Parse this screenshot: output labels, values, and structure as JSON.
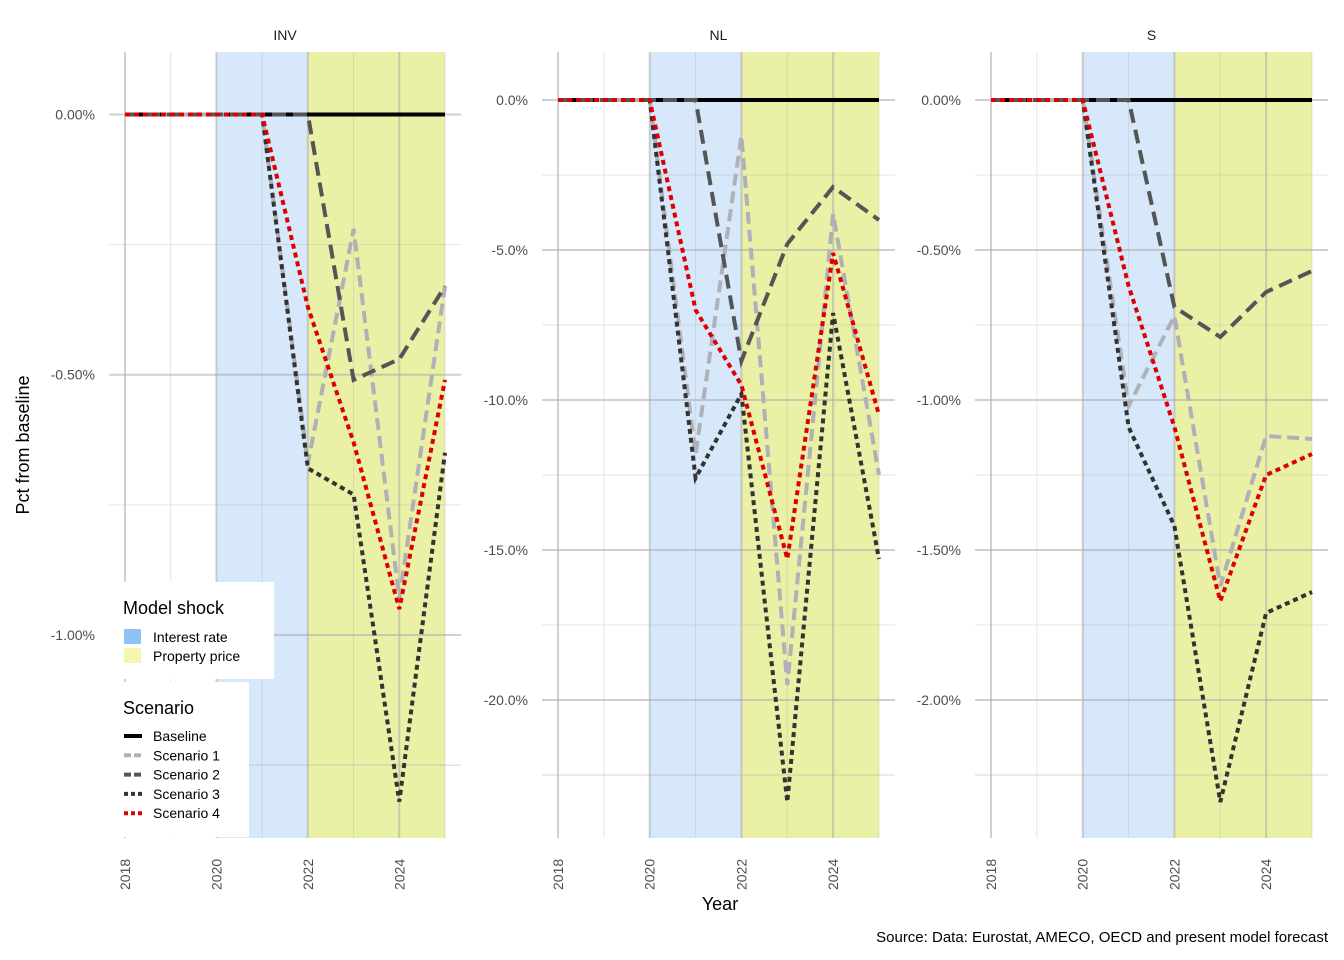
{
  "chart_data": {
    "type": "line",
    "facet_by": "panel",
    "xlabel": "Year",
    "ylabel": "Pct from baseline",
    "caption": "Source: Data: Eurostat, AMECO, OECD and present model forecast",
    "x_range": [
      2018,
      2025
    ],
    "x_ticks": [
      "2018",
      "2020",
      "2022",
      "2024"
    ],
    "x": [
      2018,
      2019,
      2020,
      2021,
      2022,
      2023,
      2024,
      2025
    ],
    "shock_bands": [
      {
        "name": "Interest rate",
        "from": 2020,
        "to": 2022,
        "color": "#d6e8f9"
      },
      {
        "name": "Property price",
        "from": 2022,
        "to": 2025,
        "color": "#eaf0a6"
      }
    ],
    "legend": {
      "shock_title": "Model shock",
      "shock_items": [
        {
          "label": "Interest rate",
          "color": "#8ec4f1"
        },
        {
          "label": "Property price",
          "color": "#f5f5b0"
        }
      ],
      "scenario_title": "Scenario",
      "scenario_items": [
        {
          "label": "Baseline",
          "color": "#000000",
          "dash": "none"
        },
        {
          "label": "Scenario 1",
          "color": "#b0b0b8",
          "dash": "12,6"
        },
        {
          "label": "Scenario 2",
          "color": "#555555",
          "dash": "14,7"
        },
        {
          "label": "Scenario 3",
          "color": "#333333",
          "dash": "5,4"
        },
        {
          "label": "Scenario 4",
          "color": "#dd0000",
          "dash": "5,4"
        }
      ]
    },
    "panels": [
      {
        "title": "INV",
        "ylim": [
          -1.39,
          0.12
        ],
        "y_ticks": [
          0,
          -0.5,
          -1.0
        ],
        "y_tick_labels": [
          "0.00%",
          "-0.50%",
          "-1.00%"
        ],
        "series": [
          {
            "name": "Baseline",
            "values": [
              0,
              0,
              0,
              0,
              0,
              0,
              0,
              0
            ]
          },
          {
            "name": "Scenario 1",
            "values": [
              0,
              0,
              0,
              0,
              -0.67,
              -0.22,
              -0.93,
              -0.33
            ]
          },
          {
            "name": "Scenario 2",
            "values": [
              0,
              0,
              0,
              0,
              0,
              -0.51,
              -0.47,
              -0.33
            ]
          },
          {
            "name": "Scenario 3",
            "values": [
              0,
              0,
              0,
              0,
              -0.68,
              -0.73,
              -1.32,
              -0.65
            ]
          },
          {
            "name": "Scenario 4",
            "values": [
              0,
              0,
              0,
              0,
              -0.37,
              -0.63,
              -0.95,
              -0.51
            ]
          }
        ]
      },
      {
        "title": "NL",
        "ylim": [
          -24.6,
          1.6
        ],
        "y_ticks": [
          0,
          -5,
          -10,
          -15,
          -20
        ],
        "y_tick_labels": [
          "0.0%",
          "-5.0%",
          "-10.0%",
          "-15.0%",
          "-20.0%"
        ],
        "series": [
          {
            "name": "Baseline",
            "values": [
              0,
              0,
              0,
              0,
              0,
              0,
              0,
              0
            ]
          },
          {
            "name": "Scenario 1",
            "values": [
              0,
              0,
              0,
              -11.8,
              -1.2,
              -19.5,
              -3.8,
              -12.5
            ]
          },
          {
            "name": "Scenario 2",
            "values": [
              0,
              0,
              0,
              0,
              -8.7,
              -4.8,
              -2.9,
              -4.0
            ]
          },
          {
            "name": "Scenario 3",
            "values": [
              0,
              0,
              0,
              -12.6,
              -9.8,
              -23.4,
              -7.1,
              -15.3
            ]
          },
          {
            "name": "Scenario 4",
            "values": [
              0,
              0,
              0,
              -7.0,
              -9.5,
              -15.3,
              -5.1,
              -10.5
            ]
          }
        ]
      },
      {
        "title": "S",
        "ylim": [
          -2.46,
          0.16
        ],
        "y_ticks": [
          0,
          -0.5,
          -1.0,
          -1.5,
          -2.0
        ],
        "y_tick_labels": [
          "0.00%",
          "-0.50%",
          "-1.00%",
          "-1.50%",
          "-2.00%"
        ],
        "series": [
          {
            "name": "Baseline",
            "values": [
              0,
              0,
              0,
              0,
              0,
              0,
              0,
              0
            ]
          },
          {
            "name": "Scenario 1",
            "values": [
              0,
              0,
              0,
              -1.02,
              -0.72,
              -1.62,
              -1.12,
              -1.13
            ]
          },
          {
            "name": "Scenario 2",
            "values": [
              0,
              0,
              0,
              0,
              -0.69,
              -0.79,
              -0.64,
              -0.57
            ]
          },
          {
            "name": "Scenario 3",
            "values": [
              0,
              0,
              0,
              -1.09,
              -1.42,
              -2.34,
              -1.71,
              -1.64
            ]
          },
          {
            "name": "Scenario 4",
            "values": [
              0,
              0,
              0,
              -0.62,
              -1.09,
              -1.67,
              -1.25,
              -1.18
            ]
          }
        ]
      }
    ]
  }
}
